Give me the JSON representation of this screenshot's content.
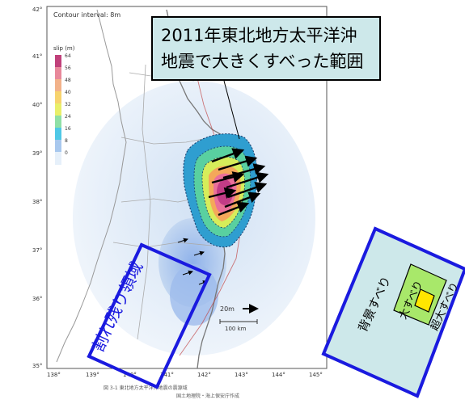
{
  "map": {
    "contour_label": "Contour interval: 8m",
    "legend_title": "slip (m)",
    "legend_values": [
      "64",
      "56",
      "48",
      "40",
      "32",
      "24",
      "16",
      "8",
      "0"
    ],
    "legend_colors": [
      "#c0407a",
      "#e8889a",
      "#f2b28a",
      "#f7d36e",
      "#e9ef6a",
      "#8fe0a6",
      "#4fc8e6",
      "#a8c8ee",
      "#e6f0fa"
    ],
    "lat_labels": [
      "42°",
      "41°",
      "40°",
      "39°",
      "38°",
      "37°",
      "36°",
      "35°"
    ],
    "lon_labels": [
      "138°",
      "139°",
      "140°",
      "141°",
      "142°",
      "143°",
      "144°",
      "145°"
    ],
    "scale_arrow_label": "20m",
    "scale_bar_label": "100 km",
    "caption_line1": "図 3-1  東北地方太平洋沖地震の震源域",
    "caption_line2": "国土地理院・海上保安庁作成"
  },
  "callout": {
    "line1": "2011年東北地方太平洋沖",
    "line2": "地震で大きくすべった範囲"
  },
  "unbroken_region_label": "割れ残り領域",
  "diagram": {
    "background_slip_label": "背景すべり",
    "large_slip_label": "大すべり",
    "super_large_slip_label": "超大すべり"
  }
}
